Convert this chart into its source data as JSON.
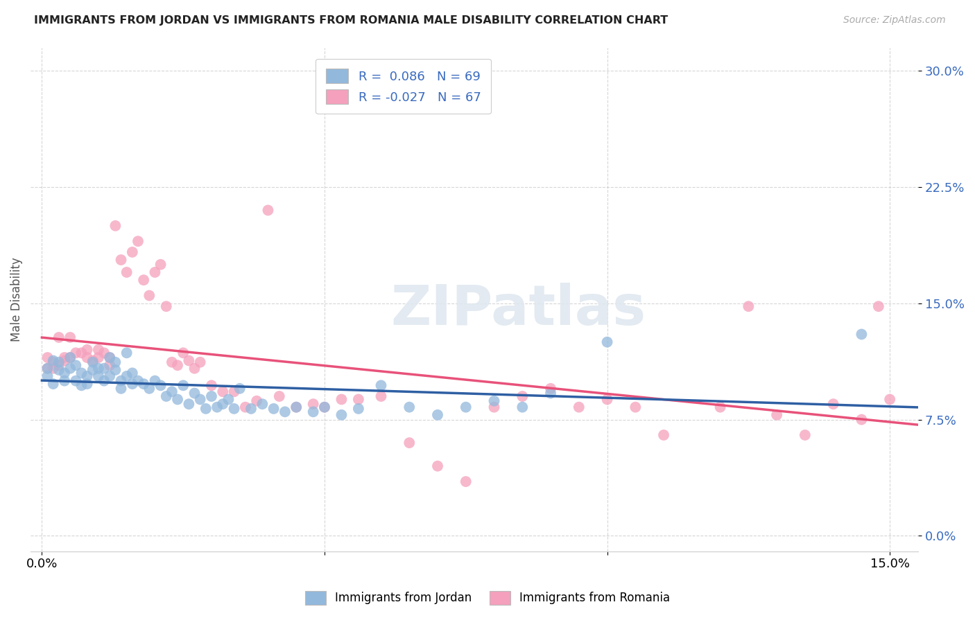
{
  "title": "IMMIGRANTS FROM JORDAN VS IMMIGRANTS FROM ROMANIA MALE DISABILITY CORRELATION CHART",
  "source": "Source: ZipAtlas.com",
  "ylabel": "Male Disability",
  "ytick_values": [
    0.0,
    0.075,
    0.15,
    0.225,
    0.3
  ],
  "ytick_labels": [
    "0.0%",
    "7.5%",
    "15.0%",
    "22.5%",
    "30.0%"
  ],
  "xtick_values": [
    0.0,
    0.05,
    0.1,
    0.15
  ],
  "xtick_labels": [
    "0.0%",
    "",
    "",
    "15.0%"
  ],
  "xlim": [
    -0.002,
    0.155
  ],
  "ylim": [
    -0.01,
    0.315
  ],
  "jordan_R": 0.086,
  "jordan_N": 69,
  "romania_R": -0.027,
  "romania_N": 67,
  "jordan_color": "#92b8dc",
  "romania_color": "#f5a0bc",
  "jordan_line_color": "#2e5fa3",
  "romania_line_color": "#e8527a",
  "watermark": "ZIPatlas",
  "jordan_x": [
    0.001,
    0.001,
    0.002,
    0.002,
    0.003,
    0.003,
    0.004,
    0.004,
    0.005,
    0.005,
    0.006,
    0.006,
    0.007,
    0.007,
    0.008,
    0.008,
    0.009,
    0.009,
    0.01,
    0.01,
    0.011,
    0.011,
    0.012,
    0.012,
    0.013,
    0.013,
    0.014,
    0.014,
    0.015,
    0.015,
    0.016,
    0.016,
    0.017,
    0.018,
    0.019,
    0.02,
    0.021,
    0.022,
    0.023,
    0.024,
    0.025,
    0.026,
    0.027,
    0.028,
    0.029,
    0.03,
    0.031,
    0.032,
    0.033,
    0.034,
    0.035,
    0.037,
    0.039,
    0.041,
    0.043,
    0.045,
    0.048,
    0.05,
    0.053,
    0.056,
    0.06,
    0.065,
    0.07,
    0.075,
    0.08,
    0.085,
    0.09,
    0.1,
    0.145
  ],
  "jordan_y": [
    0.103,
    0.108,
    0.098,
    0.113,
    0.107,
    0.112,
    0.105,
    0.1,
    0.108,
    0.115,
    0.1,
    0.11,
    0.097,
    0.105,
    0.103,
    0.098,
    0.112,
    0.107,
    0.108,
    0.103,
    0.1,
    0.108,
    0.103,
    0.115,
    0.107,
    0.112,
    0.1,
    0.095,
    0.103,
    0.118,
    0.098,
    0.105,
    0.1,
    0.098,
    0.095,
    0.1,
    0.097,
    0.09,
    0.093,
    0.088,
    0.097,
    0.085,
    0.092,
    0.088,
    0.082,
    0.09,
    0.083,
    0.085,
    0.088,
    0.082,
    0.095,
    0.082,
    0.085,
    0.082,
    0.08,
    0.083,
    0.08,
    0.083,
    0.078,
    0.082,
    0.097,
    0.083,
    0.078,
    0.083,
    0.087,
    0.083,
    0.092,
    0.125,
    0.13
  ],
  "romania_x": [
    0.001,
    0.001,
    0.002,
    0.002,
    0.003,
    0.003,
    0.004,
    0.004,
    0.005,
    0.005,
    0.006,
    0.007,
    0.008,
    0.008,
    0.009,
    0.01,
    0.01,
    0.011,
    0.012,
    0.012,
    0.013,
    0.014,
    0.015,
    0.016,
    0.017,
    0.018,
    0.019,
    0.02,
    0.021,
    0.022,
    0.023,
    0.024,
    0.025,
    0.026,
    0.027,
    0.028,
    0.03,
    0.032,
    0.034,
    0.036,
    0.038,
    0.04,
    0.042,
    0.045,
    0.048,
    0.05,
    0.053,
    0.056,
    0.06,
    0.065,
    0.07,
    0.075,
    0.08,
    0.085,
    0.09,
    0.095,
    0.1,
    0.105,
    0.11,
    0.12,
    0.125,
    0.13,
    0.135,
    0.14,
    0.145,
    0.148,
    0.15
  ],
  "romania_y": [
    0.108,
    0.115,
    0.112,
    0.108,
    0.128,
    0.11,
    0.115,
    0.113,
    0.128,
    0.115,
    0.118,
    0.118,
    0.115,
    0.12,
    0.113,
    0.12,
    0.115,
    0.118,
    0.11,
    0.115,
    0.2,
    0.178,
    0.17,
    0.183,
    0.19,
    0.165,
    0.155,
    0.17,
    0.175,
    0.148,
    0.112,
    0.11,
    0.118,
    0.113,
    0.108,
    0.112,
    0.097,
    0.093,
    0.093,
    0.083,
    0.087,
    0.21,
    0.09,
    0.083,
    0.085,
    0.083,
    0.088,
    0.088,
    0.09,
    0.06,
    0.045,
    0.035,
    0.083,
    0.09,
    0.095,
    0.083,
    0.088,
    0.083,
    0.065,
    0.083,
    0.148,
    0.078,
    0.065,
    0.085,
    0.075,
    0.148,
    0.088
  ]
}
